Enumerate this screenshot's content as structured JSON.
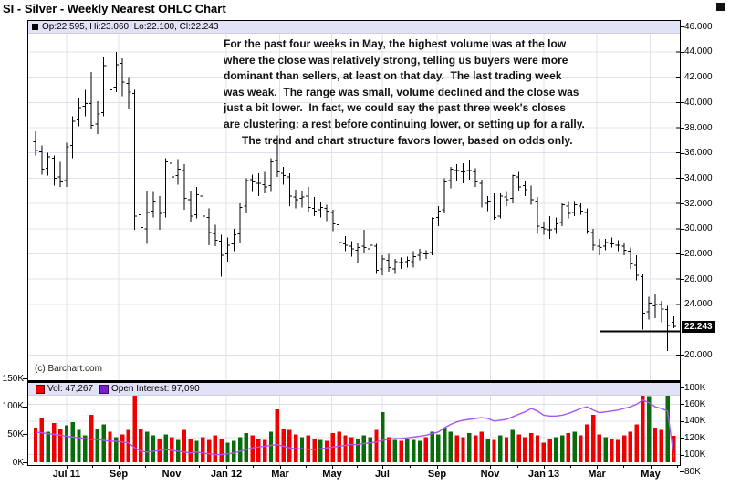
{
  "title": "SI - Silver - Weekly Nearest OHLC Chart",
  "price_panel": {
    "legend_text": "Op:22.595, Hi:23.060, Lo:22.100, Cl:22.243",
    "annotation": "For the past four weeks in May, the highest volume was at the low\nwhere the close was relatively strong, telling us buyers were more\ndominant than sellers, at least on that day.  The last trading week\nwas weak.  The range was small, volume declined and the close was\njust a bit lower.  In fact, we could say the past three week's closes\nare clustering: a rest before continuing lower, or setting up for a rally.\n      The trend and chart structure favors lower, based on odds only.",
    "copyright": "(c) Barchart.com",
    "last_price": "22.243"
  },
  "volume_panel": {
    "vol_legend": "Vol: 47,267",
    "oi_legend": "Open Interest: 97,090"
  },
  "colors": {
    "bar_up": "#0a6b0a",
    "bar_down": "#ee0000",
    "oi_line": "#aa55ee",
    "grid": "#e0e0ec",
    "ohlc": "#000000",
    "legend_bg": "#e2e2f6"
  },
  "x_axis": {
    "ticks": [
      {
        "label": "Jul 11",
        "week": 5
      },
      {
        "label": "Sep",
        "week": 13.4
      },
      {
        "label": "Nov",
        "week": 22
      },
      {
        "label": "Jan 12",
        "week": 30.8
      },
      {
        "label": "Mar",
        "week": 39.4
      },
      {
        "label": "May",
        "week": 47.8
      },
      {
        "label": "Jul",
        "week": 56
      },
      {
        "label": "Sep",
        "week": 64.8
      },
      {
        "label": "Nov",
        "week": 73.4
      },
      {
        "label": "Jan 13",
        "week": 82
      },
      {
        "label": "Mar",
        "week": 90.6
      },
      {
        "label": "May",
        "week": 99.2
      }
    ]
  },
  "chart_data": [
    {
      "type": "ohlc",
      "title": "SI - Silver - Weekly Nearest OHLC Chart",
      "period": "weekly",
      "x_range": "Jun 2011 - May 2013",
      "y_axis": {
        "min": 18.0,
        "max": 46.45,
        "tick_values": [
          46,
          44,
          42,
          40,
          38,
          36,
          34,
          32,
          30,
          28,
          26,
          24,
          20
        ],
        "tick_labels": [
          "46.000",
          "44.000",
          "42.000",
          "40.000",
          "38.000",
          "36.000",
          "34.000",
          "32.000",
          "30.000",
          "28.000",
          "26.000",
          "24.000",
          "20.000"
        ]
      },
      "last_price": 22.243,
      "reference_line": {
        "value": 21.88,
        "from_week": 91
      },
      "bars": [
        [
          36.9,
          37.7,
          35.8,
          36.2
        ],
        [
          36.1,
          36.6,
          34.3,
          34.7
        ],
        [
          34.8,
          36.0,
          34.2,
          35.7
        ],
        [
          35.6,
          35.8,
          33.4,
          34.0
        ],
        [
          34.1,
          35.3,
          33.3,
          33.7
        ],
        [
          33.8,
          36.8,
          33.3,
          36.5
        ],
        [
          36.6,
          38.9,
          35.6,
          38.5
        ],
        [
          38.6,
          40.4,
          38.1,
          39.6
        ],
        [
          39.7,
          41.0,
          38.9,
          39.9
        ],
        [
          39.9,
          42.4,
          37.9,
          38.2
        ],
        [
          38.3,
          40.1,
          37.5,
          39.1
        ],
        [
          39.2,
          43.6,
          38.9,
          42.9
        ],
        [
          42.8,
          44.3,
          40.6,
          41.0
        ],
        [
          41.2,
          44.0,
          40.8,
          43.0
        ],
        [
          43.1,
          43.5,
          40.5,
          41.6
        ],
        [
          41.5,
          42.0,
          39.5,
          40.8
        ],
        [
          40.7,
          41.0,
          29.9,
          31.0
        ],
        [
          31.1,
          32.0,
          26.2,
          30.1
        ],
        [
          30.0,
          33.0,
          28.8,
          31.3
        ],
        [
          31.4,
          32.9,
          30.9,
          32.2
        ],
        [
          32.1,
          32.6,
          29.9,
          31.2
        ],
        [
          31.3,
          35.6,
          30.9,
          35.3
        ],
        [
          35.2,
          35.7,
          33.0,
          34.1
        ],
        [
          34.2,
          35.5,
          33.5,
          34.7
        ],
        [
          34.6,
          35.1,
          31.5,
          32.4
        ],
        [
          32.3,
          33.0,
          30.5,
          31.0
        ],
        [
          31.1,
          33.3,
          30.8,
          32.7
        ],
        [
          32.6,
          33.0,
          30.7,
          31.0
        ],
        [
          30.9,
          31.6,
          28.7,
          29.7
        ],
        [
          29.6,
          30.3,
          28.6,
          29.1
        ],
        [
          29.0,
          29.5,
          26.2,
          27.9
        ],
        [
          28.0,
          29.3,
          27.4,
          28.7
        ],
        [
          28.8,
          30.0,
          28.2,
          29.5
        ],
        [
          29.6,
          32.0,
          28.9,
          31.7
        ],
        [
          31.8,
          34.0,
          31.2,
          33.8
        ],
        [
          33.9,
          34.3,
          32.9,
          33.7
        ],
        [
          33.6,
          34.4,
          32.6,
          33.6
        ],
        [
          33.5,
          34.5,
          32.8,
          33.3
        ],
        [
          33.4,
          35.6,
          32.9,
          35.3
        ],
        [
          35.4,
          37.4,
          34.1,
          34.5
        ],
        [
          34.4,
          34.9,
          33.5,
          34.2
        ],
        [
          34.1,
          34.4,
          31.8,
          32.6
        ],
        [
          32.5,
          33.1,
          31.6,
          32.3
        ],
        [
          32.4,
          33.0,
          31.7,
          32.5
        ],
        [
          32.6,
          33.3,
          31.3,
          31.7
        ],
        [
          31.6,
          32.5,
          31.0,
          31.4
        ],
        [
          31.5,
          32.1,
          30.9,
          31.7
        ],
        [
          31.6,
          31.9,
          30.6,
          31.4
        ],
        [
          31.3,
          31.5,
          29.8,
          30.4
        ],
        [
          30.3,
          30.6,
          28.6,
          28.9
        ],
        [
          28.8,
          29.4,
          28.2,
          28.7
        ],
        [
          28.6,
          29.0,
          27.8,
          28.4
        ],
        [
          28.3,
          28.9,
          27.3,
          28.5
        ],
        [
          28.6,
          29.9,
          28.1,
          28.5
        ],
        [
          28.4,
          29.2,
          28.0,
          28.7
        ],
        [
          28.6,
          28.8,
          26.5,
          26.7
        ],
        [
          26.8,
          27.9,
          26.3,
          27.6
        ],
        [
          27.5,
          28.0,
          26.6,
          26.9
        ],
        [
          26.8,
          27.6,
          26.5,
          27.4
        ],
        [
          27.3,
          27.7,
          26.8,
          27.3
        ],
        [
          27.4,
          27.8,
          26.9,
          27.5
        ],
        [
          27.4,
          28.2,
          26.9,
          27.8
        ],
        [
          27.9,
          28.4,
          27.5,
          28.1
        ],
        [
          28.0,
          28.3,
          27.6,
          28.0
        ],
        [
          28.1,
          30.9,
          27.9,
          30.8
        ],
        [
          30.9,
          31.8,
          30.2,
          31.4
        ],
        [
          31.5,
          34.0,
          31.2,
          33.7
        ],
        [
          33.8,
          34.9,
          33.2,
          34.7
        ],
        [
          34.6,
          35.1,
          33.8,
          34.6
        ],
        [
          34.5,
          35.2,
          33.6,
          34.5
        ],
        [
          34.6,
          35.4,
          33.9,
          34.6
        ],
        [
          34.5,
          34.8,
          33.3,
          33.7
        ],
        [
          33.6,
          33.9,
          31.7,
          32.1
        ],
        [
          32.0,
          32.6,
          31.4,
          32.2
        ],
        [
          32.1,
          32.8,
          30.7,
          30.9
        ],
        [
          31.0,
          32.8,
          30.8,
          32.6
        ],
        [
          32.5,
          32.9,
          31.8,
          32.3
        ],
        [
          32.4,
          34.3,
          32.0,
          34.2
        ],
        [
          34.1,
          34.5,
          33.0,
          33.3
        ],
        [
          33.4,
          33.8,
          32.6,
          33.1
        ],
        [
          33.0,
          33.4,
          31.9,
          32.3
        ],
        [
          32.2,
          32.5,
          29.6,
          30.2
        ],
        [
          30.1,
          30.5,
          29.5,
          30.0
        ],
        [
          29.9,
          31.0,
          29.2,
          29.9
        ],
        [
          30.0,
          30.9,
          29.6,
          30.4
        ],
        [
          30.5,
          32.0,
          30.2,
          31.9
        ],
        [
          31.8,
          32.2,
          30.8,
          31.2
        ],
        [
          31.3,
          32.2,
          31.0,
          31.9
        ],
        [
          31.8,
          32.0,
          31.1,
          31.4
        ],
        [
          31.3,
          31.6,
          29.6,
          29.8
        ],
        [
          29.7,
          30.0,
          28.3,
          28.7
        ],
        [
          28.6,
          29.2,
          27.9,
          28.5
        ],
        [
          28.6,
          29.2,
          28.3,
          28.9
        ],
        [
          28.8,
          29.3,
          28.5,
          28.8
        ],
        [
          28.7,
          29.1,
          28.2,
          28.7
        ],
        [
          28.6,
          28.9,
          27.9,
          28.3
        ],
        [
          28.2,
          28.5,
          26.8,
          27.2
        ],
        [
          27.1,
          27.9,
          25.9,
          26.3
        ],
        [
          26.2,
          26.4,
          22.0,
          23.3
        ],
        [
          23.4,
          24.6,
          22.8,
          24.1
        ],
        [
          23.9,
          24.85,
          22.9,
          24.0
        ],
        [
          24.0,
          24.3,
          22.6,
          23.65
        ],
        [
          23.6,
          23.9,
          20.3,
          22.35
        ],
        [
          22.595,
          23.06,
          22.1,
          22.243
        ]
      ]
    },
    {
      "type": "bar+line",
      "volume": {
        "name": "Volume",
        "last_label": "47,267",
        "axis_values": [
          150,
          100,
          50,
          0
        ],
        "axis_labels": [
          "150K",
          "100K",
          "50K",
          "0K"
        ],
        "values": [
          62,
          78,
          55,
          70,
          60,
          66,
          72,
          58,
          48,
          85,
          60,
          68,
          55,
          45,
          50,
          58,
          140,
          60,
          55,
          48,
          42,
          50,
          45,
          40,
          58,
          42,
          38,
          45,
          40,
          48,
          42,
          35,
          38,
          45,
          52,
          48,
          42,
          40,
          55,
          95,
          60,
          58,
          50,
          45,
          48,
          42,
          40,
          38,
          52,
          55,
          48,
          45,
          42,
          48,
          45,
          58,
          90,
          45,
          40,
          38,
          42,
          40,
          38,
          45,
          55,
          50,
          62,
          55,
          48,
          45,
          52,
          48,
          55,
          42,
          40,
          48,
          45,
          58,
          50,
          45,
          52,
          48,
          35,
          42,
          45,
          48,
          52,
          55,
          48,
          68,
          85,
          50,
          45,
          42,
          40,
          48,
          55,
          68,
          130,
          118,
          62,
          58,
          122,
          47.267
        ],
        "colors": [
          "r",
          "r",
          "g",
          "r",
          "r",
          "g",
          "g",
          "g",
          "g",
          "r",
          "g",
          "g",
          "r",
          "g",
          "r",
          "r",
          "r",
          "r",
          "g",
          "g",
          "r",
          "g",
          "r",
          "g",
          "r",
          "r",
          "g",
          "r",
          "r",
          "r",
          "r",
          "g",
          "g",
          "g",
          "g",
          "r",
          "r",
          "r",
          "g",
          "r",
          "r",
          "r",
          "r",
          "g",
          "r",
          "r",
          "g",
          "r",
          "r",
          "r",
          "r",
          "r",
          "g",
          "g",
          "g",
          "r",
          "g",
          "r",
          "g",
          "r",
          "g",
          "g",
          "g",
          "r",
          "g",
          "g",
          "g",
          "g",
          "r",
          "r",
          "g",
          "r",
          "r",
          "g",
          "r",
          "g",
          "r",
          "g",
          "r",
          "r",
          "r",
          "r",
          "r",
          "r",
          "g",
          "g",
          "r",
          "g",
          "r",
          "r",
          "r",
          "r",
          "g",
          "r",
          "r",
          "r",
          "r",
          "r",
          "r",
          "g",
          "r",
          "r",
          "g",
          "r"
        ]
      },
      "open_interest": {
        "name": "Open Interest",
        "last_label": "97,090",
        "axis_values": [
          180,
          160,
          140,
          120,
          100,
          80
        ],
        "axis_labels": [
          "180K",
          "160K",
          "140K",
          "120K",
          "100K",
          "80K"
        ],
        "values": [
          127,
          126,
          125,
          124,
          123,
          122,
          121,
          120,
          119,
          118,
          118,
          117,
          116,
          116,
          115,
          114,
          108,
          104,
          103,
          104,
          105,
          106,
          105,
          104,
          103,
          102,
          103,
          102,
          101,
          100,
          100,
          101,
          102,
          104,
          106,
          108,
          109,
          110,
          111,
          112,
          110,
          108,
          107,
          107,
          106,
          106,
          107,
          108,
          109,
          110,
          111,
          112,
          112,
          113,
          114,
          115,
          117,
          118,
          119,
          119,
          120,
          121,
          122,
          123,
          125,
          127,
          132,
          136,
          139,
          141,
          142,
          143,
          144,
          143,
          140,
          141,
          142,
          145,
          148,
          151,
          155,
          152,
          147,
          146,
          146,
          147,
          149,
          152,
          155,
          157,
          153,
          150,
          151,
          152,
          153,
          155,
          157,
          160,
          165,
          162,
          157,
          155,
          152,
          97.09
        ]
      }
    }
  ]
}
